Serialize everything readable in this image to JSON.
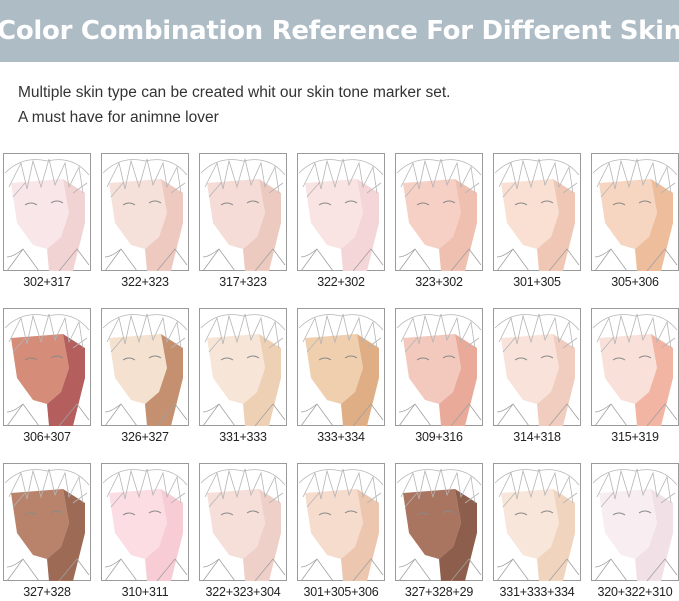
{
  "header": {
    "title": "Color Combination Reference For Different Skin",
    "background": "#aebcc6"
  },
  "intro": {
    "line1": "Multiple skin type can be created whit our skin tone marker set.",
    "line2": "A must have for animne lover"
  },
  "swatches": [
    {
      "label": "302+317",
      "light": "#f9e6e8",
      "shadow": "#f2d3d3"
    },
    {
      "label": "322+323",
      "light": "#f6e0da",
      "shadow": "#eec9bf"
    },
    {
      "label": "317+323",
      "light": "#f5dcd6",
      "shadow": "#eccac0"
    },
    {
      "label": "322+302",
      "light": "#fae3e3",
      "shadow": "#f5d6d8"
    },
    {
      "label": "323+302",
      "light": "#f6d0c4",
      "shadow": "#efbfb0"
    },
    {
      "label": "301+305",
      "light": "#f9e0d3",
      "shadow": "#f0c7b4"
    },
    {
      "label": "305+306",
      "light": "#f6d6c0",
      "shadow": "#edbd9c"
    },
    {
      "label": "306+307",
      "light": "#d58c78",
      "shadow": "#b45f5e"
    },
    {
      "label": "326+327",
      "light": "#f5e1cf",
      "shadow": "#c5906f"
    },
    {
      "label": "331+333",
      "light": "#f7e6d8",
      "shadow": "#eed1b5"
    },
    {
      "label": "333+334",
      "light": "#f0cfae",
      "shadow": "#dfae85"
    },
    {
      "label": "309+316",
      "light": "#f3c9bd",
      "shadow": "#e9aa9a"
    },
    {
      "label": "314+318",
      "light": "#f8e2d9",
      "shadow": "#f1cdbf"
    },
    {
      "label": "315+319",
      "light": "#f9e1d9",
      "shadow": "#f2b4a3"
    },
    {
      "label": "327+328",
      "light": "#b8836a",
      "shadow": "#9c6a55"
    },
    {
      "label": "310+311",
      "light": "#fbdde3",
      "shadow": "#f7ccd4"
    },
    {
      "label": "322+323+304",
      "light": "#f6dfd9",
      "shadow": "#efd0c8"
    },
    {
      "label": "301+305+306",
      "light": "#f6dccd",
      "shadow": "#ecc6af"
    },
    {
      "label": "327+328+29",
      "light": "#a97460",
      "shadow": "#8e5e4c"
    },
    {
      "label": "331+333+334",
      "light": "#f8e6da",
      "shadow": "#f0d4bd"
    },
    {
      "label": "320+322+310",
      "light": "#f8edf1",
      "shadow": "#f1e1e7"
    }
  ]
}
